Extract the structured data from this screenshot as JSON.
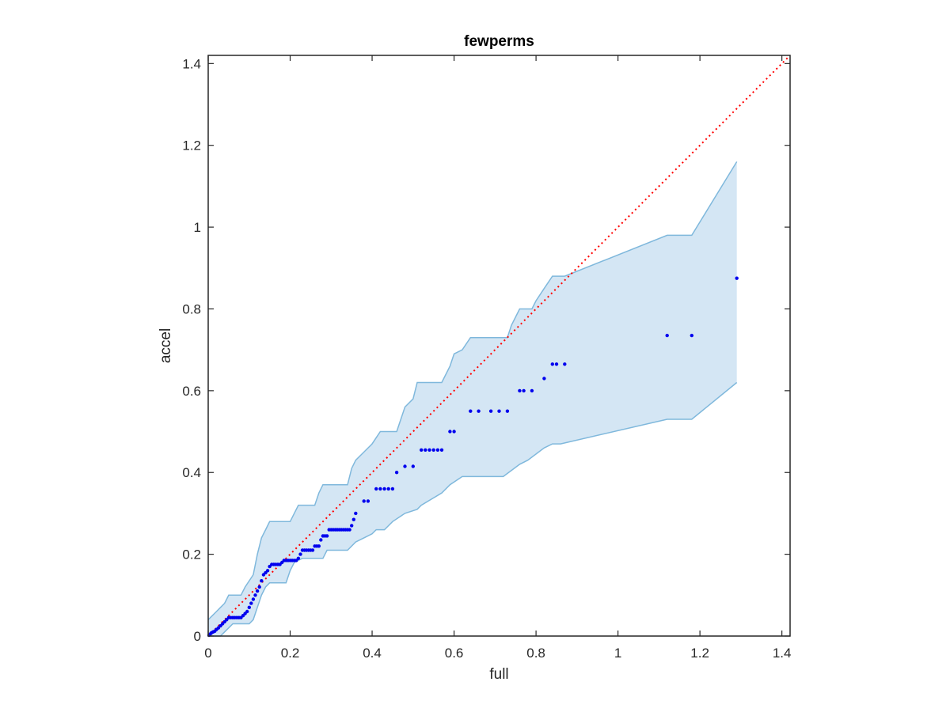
{
  "chart_data": {
    "type": "scatter",
    "title": "fewperms",
    "xlabel": "full",
    "ylabel": "accel",
    "xlim": [
      0,
      1.42
    ],
    "ylim": [
      0,
      1.42
    ],
    "xticks": [
      0,
      0.2,
      0.4,
      0.6,
      0.8,
      1,
      1.2,
      1.4
    ],
    "yticks": [
      0,
      0.2,
      0.4,
      0.6,
      0.8,
      1,
      1.2,
      1.4
    ],
    "xtick_labels": [
      "0",
      "0.2",
      "0.4",
      "0.6",
      "0.8",
      "1",
      "1.2",
      "1.4"
    ],
    "ytick_labels": [
      "0",
      "0.2",
      "0.4",
      "0.6",
      "0.8",
      "1",
      "1.2",
      "1.4"
    ],
    "grid": false,
    "colors": {
      "points": "#0000ee",
      "band_fill": "#d4e6f4",
      "band_edge": "#7fb8dc",
      "reference_line": "#ff0000",
      "axes": "#262626"
    },
    "reference_line": {
      "style": "dotted",
      "x": [
        0,
        1.42
      ],
      "y": [
        0,
        1.42
      ]
    },
    "band": {
      "upper": [
        [
          0,
          0.04
        ],
        [
          0.01,
          0.05
        ],
        [
          0.02,
          0.06
        ],
        [
          0.03,
          0.07
        ],
        [
          0.04,
          0.08
        ],
        [
          0.05,
          0.1
        ],
        [
          0.08,
          0.1
        ],
        [
          0.09,
          0.12
        ],
        [
          0.11,
          0.15
        ],
        [
          0.12,
          0.2
        ],
        [
          0.13,
          0.24
        ],
        [
          0.14,
          0.26
        ],
        [
          0.15,
          0.28
        ],
        [
          0.2,
          0.28
        ],
        [
          0.21,
          0.3
        ],
        [
          0.22,
          0.32
        ],
        [
          0.26,
          0.32
        ],
        [
          0.27,
          0.35
        ],
        [
          0.28,
          0.37
        ],
        [
          0.34,
          0.37
        ],
        [
          0.35,
          0.41
        ],
        [
          0.36,
          0.43
        ],
        [
          0.38,
          0.45
        ],
        [
          0.4,
          0.47
        ],
        [
          0.42,
          0.5
        ],
        [
          0.46,
          0.5
        ],
        [
          0.47,
          0.53
        ],
        [
          0.48,
          0.56
        ],
        [
          0.5,
          0.58
        ],
        [
          0.51,
          0.62
        ],
        [
          0.57,
          0.62
        ],
        [
          0.59,
          0.66
        ],
        [
          0.6,
          0.69
        ],
        [
          0.62,
          0.7
        ],
        [
          0.64,
          0.73
        ],
        [
          0.73,
          0.73
        ],
        [
          0.74,
          0.76
        ],
        [
          0.76,
          0.8
        ],
        [
          0.79,
          0.8
        ],
        [
          0.8,
          0.82
        ],
        [
          0.82,
          0.85
        ],
        [
          0.84,
          0.88
        ],
        [
          0.87,
          0.88
        ],
        [
          1.12,
          0.98
        ],
        [
          1.18,
          0.98
        ],
        [
          1.29,
          1.16
        ]
      ],
      "lower": [
        [
          0,
          0
        ],
        [
          0.03,
          0
        ],
        [
          0.04,
          0.01
        ],
        [
          0.05,
          0.02
        ],
        [
          0.06,
          0.03
        ],
        [
          0.1,
          0.03
        ],
        [
          0.11,
          0.04
        ],
        [
          0.12,
          0.07
        ],
        [
          0.13,
          0.1
        ],
        [
          0.14,
          0.12
        ],
        [
          0.15,
          0.13
        ],
        [
          0.19,
          0.13
        ],
        [
          0.2,
          0.16
        ],
        [
          0.21,
          0.18
        ],
        [
          0.23,
          0.19
        ],
        [
          0.28,
          0.19
        ],
        [
          0.29,
          0.21
        ],
        [
          0.34,
          0.21
        ],
        [
          0.36,
          0.23
        ],
        [
          0.38,
          0.24
        ],
        [
          0.4,
          0.25
        ],
        [
          0.41,
          0.26
        ],
        [
          0.43,
          0.26
        ],
        [
          0.45,
          0.28
        ],
        [
          0.48,
          0.3
        ],
        [
          0.51,
          0.31
        ],
        [
          0.52,
          0.32
        ],
        [
          0.57,
          0.35
        ],
        [
          0.59,
          0.37
        ],
        [
          0.62,
          0.39
        ],
        [
          0.72,
          0.39
        ],
        [
          0.76,
          0.42
        ],
        [
          0.78,
          0.43
        ],
        [
          0.82,
          0.46
        ],
        [
          0.84,
          0.47
        ],
        [
          0.86,
          0.47
        ],
        [
          1.12,
          0.53
        ],
        [
          1.18,
          0.53
        ],
        [
          1.29,
          0.62
        ]
      ]
    },
    "points": [
      [
        0.002,
        0.002
      ],
      [
        0.005,
        0.005
      ],
      [
        0.008,
        0.008
      ],
      [
        0.012,
        0.01
      ],
      [
        0.016,
        0.012
      ],
      [
        0.02,
        0.016
      ],
      [
        0.025,
        0.02
      ],
      [
        0.03,
        0.025
      ],
      [
        0.035,
        0.03
      ],
      [
        0.04,
        0.035
      ],
      [
        0.045,
        0.04
      ],
      [
        0.05,
        0.045
      ],
      [
        0.055,
        0.045
      ],
      [
        0.06,
        0.045
      ],
      [
        0.065,
        0.045
      ],
      [
        0.07,
        0.045
      ],
      [
        0.075,
        0.045
      ],
      [
        0.08,
        0.045
      ],
      [
        0.085,
        0.05
      ],
      [
        0.09,
        0.055
      ],
      [
        0.095,
        0.06
      ],
      [
        0.1,
        0.07
      ],
      [
        0.105,
        0.08
      ],
      [
        0.11,
        0.09
      ],
      [
        0.115,
        0.1
      ],
      [
        0.12,
        0.11
      ],
      [
        0.125,
        0.12
      ],
      [
        0.13,
        0.135
      ],
      [
        0.135,
        0.15
      ],
      [
        0.14,
        0.155
      ],
      [
        0.145,
        0.16
      ],
      [
        0.15,
        0.17
      ],
      [
        0.155,
        0.175
      ],
      [
        0.16,
        0.175
      ],
      [
        0.165,
        0.175
      ],
      [
        0.17,
        0.175
      ],
      [
        0.175,
        0.175
      ],
      [
        0.18,
        0.18
      ],
      [
        0.185,
        0.185
      ],
      [
        0.19,
        0.185
      ],
      [
        0.195,
        0.185
      ],
      [
        0.2,
        0.185
      ],
      [
        0.205,
        0.185
      ],
      [
        0.21,
        0.185
      ],
      [
        0.215,
        0.185
      ],
      [
        0.22,
        0.19
      ],
      [
        0.225,
        0.2
      ],
      [
        0.23,
        0.21
      ],
      [
        0.235,
        0.21
      ],
      [
        0.24,
        0.21
      ],
      [
        0.245,
        0.21
      ],
      [
        0.25,
        0.21
      ],
      [
        0.255,
        0.21
      ],
      [
        0.26,
        0.22
      ],
      [
        0.265,
        0.22
      ],
      [
        0.27,
        0.22
      ],
      [
        0.275,
        0.235
      ],
      [
        0.28,
        0.245
      ],
      [
        0.285,
        0.245
      ],
      [
        0.29,
        0.245
      ],
      [
        0.295,
        0.26
      ],
      [
        0.3,
        0.26
      ],
      [
        0.305,
        0.26
      ],
      [
        0.31,
        0.26
      ],
      [
        0.315,
        0.26
      ],
      [
        0.32,
        0.26
      ],
      [
        0.325,
        0.26
      ],
      [
        0.33,
        0.26
      ],
      [
        0.335,
        0.26
      ],
      [
        0.34,
        0.26
      ],
      [
        0.345,
        0.26
      ],
      [
        0.35,
        0.27
      ],
      [
        0.355,
        0.285
      ],
      [
        0.36,
        0.3
      ],
      [
        0.38,
        0.33
      ],
      [
        0.39,
        0.33
      ],
      [
        0.41,
        0.36
      ],
      [
        0.42,
        0.36
      ],
      [
        0.43,
        0.36
      ],
      [
        0.44,
        0.36
      ],
      [
        0.45,
        0.36
      ],
      [
        0.46,
        0.4
      ],
      [
        0.48,
        0.415
      ],
      [
        0.5,
        0.415
      ],
      [
        0.52,
        0.455
      ],
      [
        0.53,
        0.455
      ],
      [
        0.54,
        0.455
      ],
      [
        0.55,
        0.455
      ],
      [
        0.56,
        0.455
      ],
      [
        0.57,
        0.455
      ],
      [
        0.59,
        0.5
      ],
      [
        0.6,
        0.5
      ],
      [
        0.64,
        0.55
      ],
      [
        0.66,
        0.55
      ],
      [
        0.69,
        0.55
      ],
      [
        0.71,
        0.55
      ],
      [
        0.73,
        0.55
      ],
      [
        0.76,
        0.6
      ],
      [
        0.77,
        0.6
      ],
      [
        0.79,
        0.6
      ],
      [
        0.82,
        0.63
      ],
      [
        0.84,
        0.665
      ],
      [
        0.85,
        0.665
      ],
      [
        0.87,
        0.665
      ],
      [
        1.12,
        0.735
      ],
      [
        1.18,
        0.735
      ],
      [
        1.29,
        0.875
      ]
    ]
  }
}
